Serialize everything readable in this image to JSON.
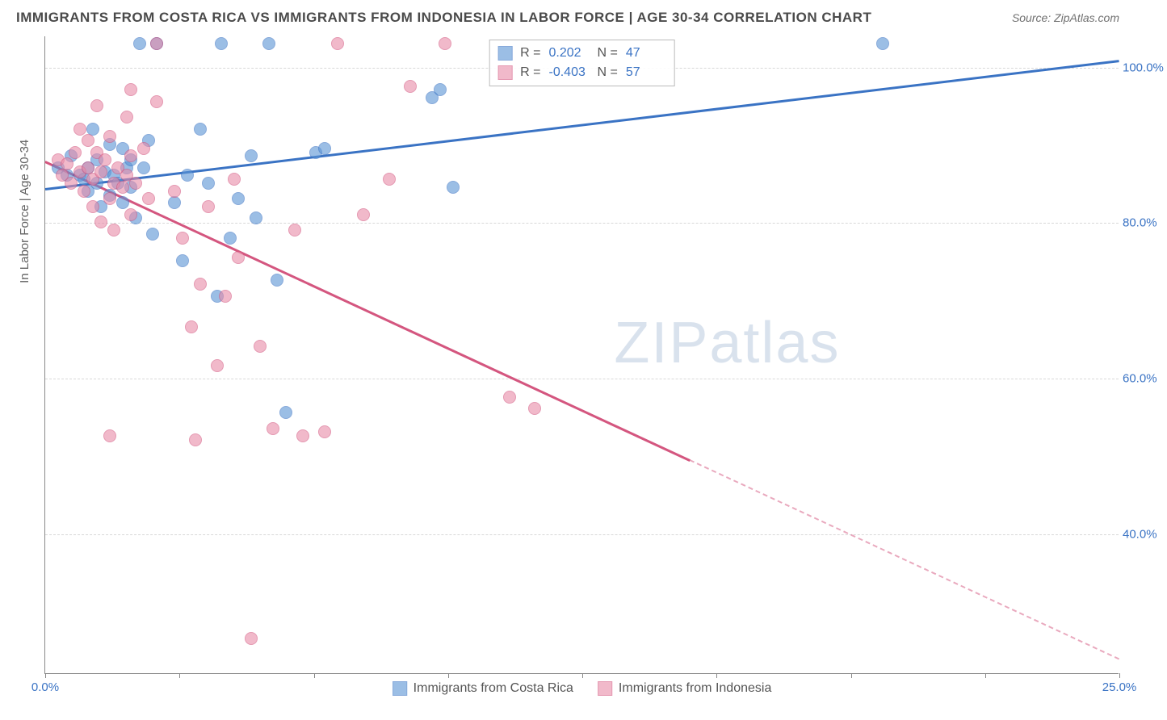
{
  "title": "IMMIGRANTS FROM COSTA RICA VS IMMIGRANTS FROM INDONESIA IN LABOR FORCE | AGE 30-34 CORRELATION CHART",
  "source": "Source: ZipAtlas.com",
  "y_axis_label": "In Labor Force | Age 30-34",
  "watermark_a": "ZIP",
  "watermark_b": "atlas",
  "chart": {
    "type": "scatter",
    "background_color": "#ffffff",
    "grid_color": "#d8d8d8",
    "border_color": "#888888",
    "axis_label_color": "#3a73c4",
    "xlim": [
      0,
      25
    ],
    "ylim": [
      22,
      104
    ],
    "xticks": [
      0,
      3.125,
      6.25,
      9.375,
      12.5,
      15.625,
      18.75,
      21.875,
      25
    ],
    "xtick_labels": {
      "0": "0.0%",
      "25": "25.0%"
    },
    "yticks": [
      40,
      60,
      80,
      100
    ],
    "marker_radius": 8,
    "marker_border_width": 1.5,
    "marker_fill_opacity": 0.35
  },
  "series": [
    {
      "name": "Immigrants from Costa Rica",
      "color": "#5a93d4",
      "border_color": "#3a73c4",
      "R": "0.202",
      "N": "47",
      "trend": {
        "x0": 0,
        "y0": 84.5,
        "x1": 25,
        "y1": 101,
        "dashed_from_x": null
      },
      "points": [
        [
          0.3,
          87
        ],
        [
          0.5,
          86
        ],
        [
          0.6,
          88.5
        ],
        [
          0.8,
          86
        ],
        [
          0.9,
          85.5
        ],
        [
          1.0,
          84
        ],
        [
          1.0,
          87
        ],
        [
          1.1,
          92
        ],
        [
          1.2,
          85
        ],
        [
          1.2,
          88
        ],
        [
          1.3,
          82
        ],
        [
          1.4,
          86.5
        ],
        [
          1.5,
          90
        ],
        [
          1.5,
          83.5
        ],
        [
          1.6,
          86
        ],
        [
          1.7,
          85
        ],
        [
          1.8,
          89.5
        ],
        [
          1.8,
          82.5
        ],
        [
          1.9,
          87
        ],
        [
          2.0,
          84.5
        ],
        [
          2.0,
          88
        ],
        [
          2.1,
          80.5
        ],
        [
          2.2,
          103
        ],
        [
          2.3,
          87
        ],
        [
          2.4,
          90.5
        ],
        [
          2.5,
          78.5
        ],
        [
          2.6,
          103
        ],
        [
          3.0,
          82.5
        ],
        [
          3.2,
          75
        ],
        [
          3.3,
          86
        ],
        [
          3.6,
          92
        ],
        [
          3.8,
          85
        ],
        [
          4.0,
          70.5
        ],
        [
          4.1,
          103
        ],
        [
          4.3,
          78
        ],
        [
          4.5,
          83
        ],
        [
          4.8,
          88.5
        ],
        [
          4.9,
          80.5
        ],
        [
          5.2,
          103
        ],
        [
          5.4,
          72.5
        ],
        [
          5.6,
          55.5
        ],
        [
          6.3,
          89
        ],
        [
          6.5,
          89.5
        ],
        [
          9.0,
          96
        ],
        [
          9.2,
          97
        ],
        [
          9.5,
          84.5
        ],
        [
          19.5,
          103
        ]
      ]
    },
    {
      "name": "Immigrants from Indonesia",
      "color": "#e88ba8",
      "border_color": "#d4567f",
      "R": "-0.403",
      "N": "57",
      "trend": {
        "x0": 0,
        "y0": 88,
        "x1": 25,
        "y1": 24,
        "dashed_from_x": 15
      },
      "points": [
        [
          0.3,
          88
        ],
        [
          0.4,
          86
        ],
        [
          0.5,
          87.5
        ],
        [
          0.6,
          85
        ],
        [
          0.7,
          89
        ],
        [
          0.8,
          86.5
        ],
        [
          0.8,
          92
        ],
        [
          0.9,
          84
        ],
        [
          1.0,
          87
        ],
        [
          1.0,
          90.5
        ],
        [
          1.1,
          85.5
        ],
        [
          1.1,
          82
        ],
        [
          1.2,
          89
        ],
        [
          1.2,
          95
        ],
        [
          1.3,
          86.5
        ],
        [
          1.3,
          80
        ],
        [
          1.4,
          88
        ],
        [
          1.5,
          83
        ],
        [
          1.5,
          91
        ],
        [
          1.6,
          85
        ],
        [
          1.6,
          79
        ],
        [
          1.7,
          87
        ],
        [
          1.8,
          84.5
        ],
        [
          1.9,
          86
        ],
        [
          1.9,
          93.5
        ],
        [
          2.0,
          88.5
        ],
        [
          2.0,
          81
        ],
        [
          2.0,
          97
        ],
        [
          2.1,
          85
        ],
        [
          2.3,
          89.5
        ],
        [
          2.4,
          83
        ],
        [
          2.6,
          103
        ],
        [
          2.6,
          95.5
        ],
        [
          3.0,
          84
        ],
        [
          3.2,
          78
        ],
        [
          3.4,
          66.5
        ],
        [
          3.5,
          52
        ],
        [
          3.6,
          72
        ],
        [
          3.8,
          82
        ],
        [
          4.0,
          61.5
        ],
        [
          4.2,
          70.5
        ],
        [
          4.4,
          85.5
        ],
        [
          4.5,
          75.5
        ],
        [
          4.8,
          26.5
        ],
        [
          5.0,
          64
        ],
        [
          5.3,
          53.5
        ],
        [
          5.8,
          79
        ],
        [
          6.0,
          52.5
        ],
        [
          6.5,
          53
        ],
        [
          6.8,
          103
        ],
        [
          7.4,
          81
        ],
        [
          8.0,
          85.5
        ],
        [
          8.5,
          97.5
        ],
        [
          9.3,
          103
        ],
        [
          10.8,
          57.5
        ],
        [
          11.4,
          56
        ],
        [
          1.5,
          52.5
        ]
      ]
    }
  ],
  "legend_top_labels": {
    "R": "R =",
    "N": "N ="
  },
  "legend_bottom": [
    {
      "label": "Immigrants from Costa Rica",
      "color": "#5a93d4",
      "border": "#3a73c4"
    },
    {
      "label": "Immigrants from Indonesia",
      "color": "#e88ba8",
      "border": "#d4567f"
    }
  ]
}
